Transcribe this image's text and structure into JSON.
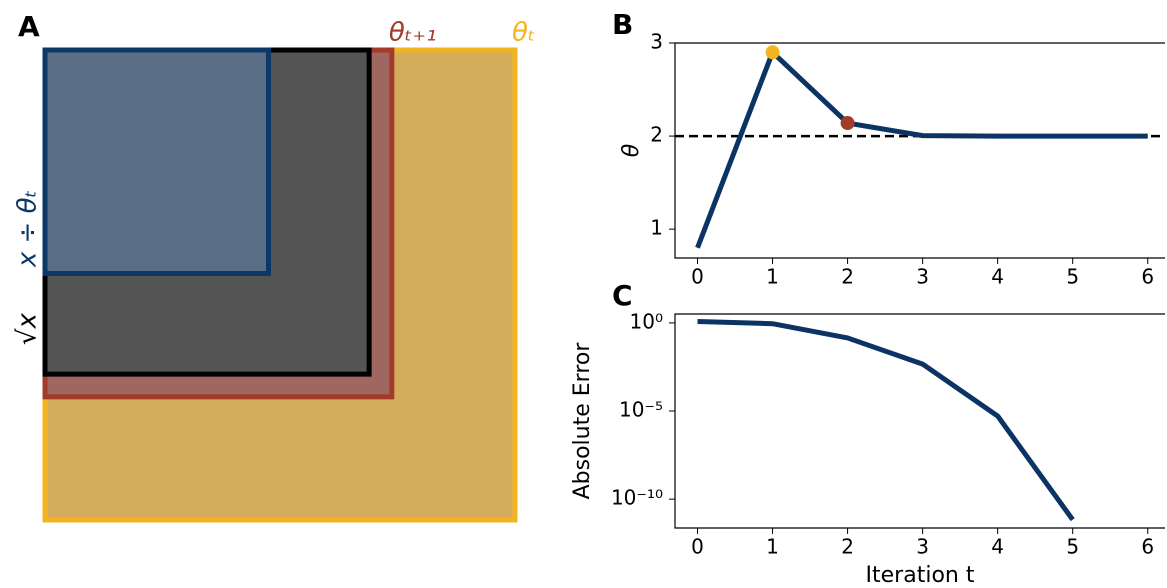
{
  "chart_data": [
    {
      "type": "squares",
      "panel": "A",
      "categories": [
        "θₜ",
        "θₜ₊₁",
        "√x",
        "x ÷ θₜ"
      ],
      "values": [
        2.9,
        2.14,
        2.0,
        1.379
      ],
      "colors": [
        "#f4b41f",
        "#a23b27",
        "#000000",
        "#0b3866"
      ],
      "fills": [
        "#d5ac5c",
        "#9f675f",
        "#545454",
        "#5a6f85"
      ],
      "label_positions": [
        "top",
        "top",
        "left",
        "left"
      ]
    },
    {
      "type": "line",
      "panel": "B",
      "ylabel": "θ",
      "x": [
        0,
        1,
        2,
        3,
        4,
        5,
        6
      ],
      "series": [
        {
          "color": "#0b3363",
          "values": [
            0.8,
            2.9,
            2.14,
            2.0046,
            2.0,
            2.0,
            2.0
          ],
          "marker_colors": [
            null,
            "#f4b41f",
            "#a23b27",
            null,
            null,
            null,
            null
          ]
        }
      ],
      "hline": 2,
      "xlim": [
        -0.3,
        6.23
      ],
      "xticks": [
        0,
        1,
        2,
        3,
        4,
        5,
        6
      ],
      "ylim": [
        0.69,
        3.0
      ],
      "yticks": [
        1,
        2,
        3
      ]
    },
    {
      "type": "line",
      "panel": "C",
      "ylabel": "Absolute Error",
      "xlabel": "Iteration t",
      "log_y": true,
      "x": [
        0,
        1,
        2,
        3,
        4,
        5,
        6
      ],
      "series": [
        {
          "color": "#0b3363",
          "values": [
            1.2,
            0.9,
            0.14,
            0.0046,
            5.2e-06,
            6.8e-12,
            null
          ]
        }
      ],
      "xlim": [
        -0.3,
        6.23
      ],
      "xticks": [
        0,
        1,
        2,
        3,
        4,
        5,
        6
      ],
      "ylim": [
        2.3e-12,
        3.2
      ],
      "yticks": [
        {
          "value": 1,
          "label": "10⁰"
        },
        {
          "value": 1e-05,
          "label": "10⁻⁵"
        },
        {
          "value": 1e-10,
          "label": "10⁻¹⁰"
        }
      ]
    }
  ]
}
